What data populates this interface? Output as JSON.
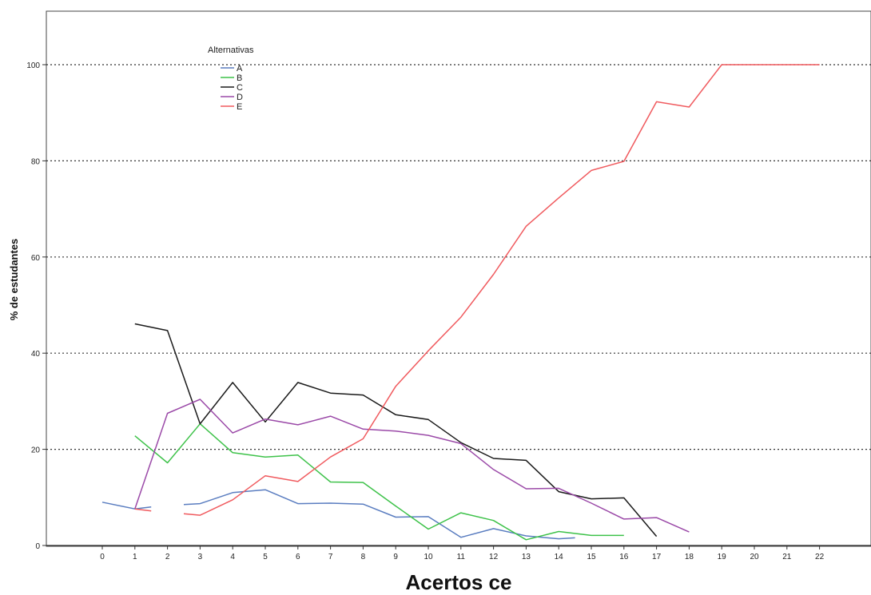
{
  "chart_data": {
    "type": "line",
    "title": "",
    "xlabel": "Acertos ce",
    "ylabel": "% de estudantes",
    "xlim": [
      -3,
      26
    ],
    "ylim": [
      0,
      100
    ],
    "x_ticks": [
      0,
      1,
      2,
      3,
      4,
      5,
      6,
      7,
      8,
      9,
      10,
      11,
      12,
      13,
      14,
      15,
      16,
      17,
      18,
      19,
      20,
      21,
      22
    ],
    "y_ticks": [
      0,
      20,
      40,
      60,
      80,
      100
    ],
    "grid": "horizontal-dotted",
    "legend": {
      "title": "Alternativas",
      "placement": "top-left"
    },
    "series": [
      {
        "name": "A",
        "color": "#5a7dc0",
        "segments": [
          [
            [
              0,
              9
            ],
            [
              1,
              7.6
            ],
            [
              1.5,
              8
            ]
          ],
          [
            [
              2.5,
              8.5
            ],
            [
              3,
              8.7
            ],
            [
              4,
              11
            ],
            [
              5,
              11.6
            ],
            [
              6,
              8.7
            ],
            [
              7,
              8.8
            ],
            [
              8,
              8.6
            ],
            [
              9,
              5.9
            ],
            [
              10,
              6
            ],
            [
              11,
              1.7
            ],
            [
              12,
              3.5
            ],
            [
              13,
              2
            ],
            [
              14,
              1.4
            ],
            [
              14.5,
              1.6
            ]
          ]
        ]
      },
      {
        "name": "B",
        "color": "#3ec24a",
        "segments": [
          [
            [
              1,
              22.8
            ],
            [
              2,
              17.2
            ],
            [
              3,
              25.3
            ],
            [
              4,
              19.3
            ],
            [
              5,
              18.4
            ],
            [
              6,
              18.8
            ],
            [
              7,
              13.2
            ],
            [
              8,
              13.1
            ],
            [
              9,
              8.2
            ],
            [
              10,
              3.4
            ],
            [
              11,
              6.8
            ],
            [
              12,
              5.2
            ],
            [
              13,
              1.2
            ],
            [
              14,
              2.9
            ],
            [
              15,
              2.1
            ],
            [
              16,
              2.1
            ]
          ]
        ]
      },
      {
        "name": "C",
        "color": "#1a1a1a",
        "segments": [
          [
            [
              1,
              46.1
            ],
            [
              2,
              44.7
            ],
            [
              3,
              25.3
            ],
            [
              4,
              33.9
            ],
            [
              5,
              25.7
            ],
            [
              6,
              33.9
            ],
            [
              7,
              31.7
            ],
            [
              8,
              31.3
            ],
            [
              9,
              27.2
            ],
            [
              10,
              26.2
            ],
            [
              11,
              21.4
            ],
            [
              12,
              18.1
            ],
            [
              13,
              17.7
            ],
            [
              14,
              11.2
            ],
            [
              15,
              9.7
            ],
            [
              16,
              9.9
            ],
            [
              17,
              1.9
            ]
          ]
        ]
      },
      {
        "name": "D",
        "color": "#9b4aa8",
        "segments": [
          [
            [
              1,
              7.6
            ],
            [
              2,
              27.5
            ],
            [
              3,
              30.4
            ],
            [
              4,
              23.4
            ],
            [
              5,
              26.3
            ],
            [
              6,
              25.1
            ],
            [
              7,
              26.9
            ],
            [
              8,
              24.2
            ],
            [
              9,
              23.8
            ],
            [
              10,
              22.9
            ],
            [
              11,
              21.2
            ],
            [
              12,
              15.8
            ],
            [
              13,
              11.8
            ],
            [
              14,
              11.9
            ],
            [
              15,
              8.8
            ],
            [
              16,
              5.5
            ],
            [
              17,
              5.8
            ],
            [
              18,
              2.8
            ]
          ]
        ]
      },
      {
        "name": "E",
        "color": "#f05a5e",
        "segments": [
          [
            [
              1,
              7.6
            ],
            [
              1.5,
              7.2
            ]
          ],
          [
            [
              2.5,
              6.6
            ],
            [
              3,
              6.3
            ],
            [
              4,
              9.5
            ],
            [
              5,
              14.5
            ],
            [
              6,
              13.3
            ],
            [
              7,
              18.4
            ],
            [
              8,
              22.2
            ],
            [
              9,
              33.1
            ],
            [
              10,
              40.5
            ],
            [
              11,
              47.5
            ],
            [
              12,
              56.4
            ],
            [
              13,
              66.4
            ],
            [
              14,
              72.3
            ],
            [
              15,
              78
            ],
            [
              16,
              79.9
            ],
            [
              17,
              92.3
            ],
            [
              18,
              91.2
            ],
            [
              19,
              100
            ],
            [
              20,
              100
            ],
            [
              21,
              100
            ],
            [
              22,
              100
            ]
          ]
        ]
      }
    ]
  }
}
